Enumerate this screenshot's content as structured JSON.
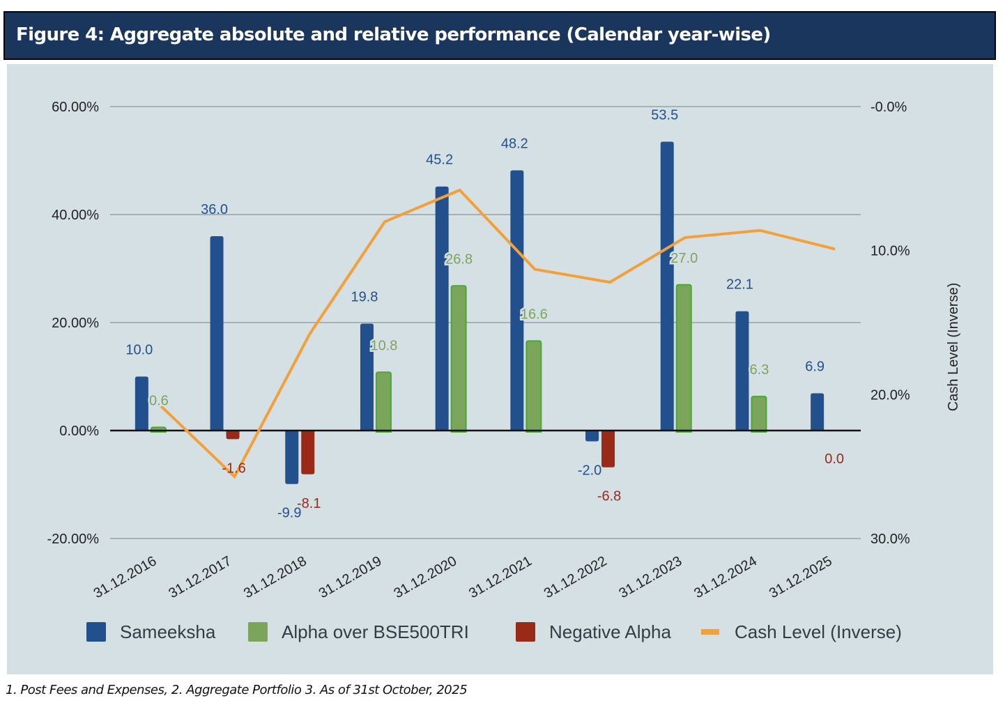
{
  "header": {
    "title": "Figure 4:  Aggregate absolute and relative performance (Calendar year-wise)"
  },
  "footnote": "1. Post Fees and Expenses, 2. Aggregate Portfolio  3. As of 31st October, 2025",
  "colors": {
    "sameeksha": "#22508c",
    "alpha": "#7aa55a",
    "alpha_border": "#4aa83a",
    "negative_alpha": "#9a2a18",
    "cash": "#f4a03a",
    "grid": "#a8b0b0",
    "zero_line": "#111111",
    "background": "#d5e0e5",
    "title_bg": "#1b365d"
  },
  "chart_data": {
    "type": "bar",
    "title": "Aggregate absolute and relative performance (Calendar year-wise)",
    "categories": [
      "31.12.2016",
      "31.12.2017",
      "31.12.2018",
      "31.12.2019",
      "31.12.2020",
      "31.12.2021",
      "31.12.2022",
      "31.12.2023",
      "31.12.2024",
      "31.12.2025"
    ],
    "series": [
      {
        "name": "Sameeksha",
        "kind": "bar",
        "axis": "left",
        "values": [
          10.0,
          36.0,
          -9.9,
          19.8,
          45.2,
          48.2,
          -2.0,
          53.5,
          22.1,
          6.9
        ],
        "labels": [
          "10.0",
          "36.0",
          "-9.9",
          "19.8",
          "45.2",
          "48.2",
          "-2.0",
          "53.5",
          "22.1",
          "6.9"
        ]
      },
      {
        "name": "Alpha over BSE500TRI",
        "kind": "bar",
        "axis": "left",
        "values": [
          0.6,
          null,
          null,
          10.8,
          26.8,
          16.6,
          null,
          27.0,
          6.3,
          null
        ],
        "labels": [
          "0.6",
          null,
          null,
          "10.8",
          "26.8",
          "16.6",
          null,
          "27.0",
          "6.3",
          null
        ]
      },
      {
        "name": "Negative Alpha",
        "kind": "bar",
        "axis": "left",
        "values": [
          null,
          -1.6,
          -8.1,
          null,
          null,
          null,
          -6.8,
          null,
          null,
          0.0
        ],
        "labels": [
          null,
          "-1.6",
          "-8.1",
          null,
          null,
          null,
          "-6.8",
          null,
          null,
          "0.0"
        ]
      },
      {
        "name": "Cash Level (Inverse)",
        "kind": "line",
        "axis": "right",
        "values": [
          20.7,
          25.7,
          15.8,
          8.0,
          5.8,
          11.3,
          12.2,
          9.1,
          8.6,
          9.9
        ]
      }
    ],
    "y_left": {
      "ylim": [
        -20,
        60
      ],
      "ticks": [
        60,
        40,
        20,
        0,
        -20
      ],
      "tick_labels": [
        "60.00%",
        "40.00%",
        "20.00%",
        "0.00%",
        "-20.00%"
      ],
      "label": ""
    },
    "y_right": {
      "ylim": [
        0,
        30
      ],
      "inverted": true,
      "ticks": [
        0,
        10,
        20,
        30
      ],
      "tick_labels": [
        "-0.0%",
        "10.0%",
        "20.0%",
        "30.0%"
      ],
      "label": "Cash Level (Inverse)"
    },
    "xlabel": "",
    "grid": true,
    "legend": {
      "position": "bottom",
      "entries": [
        "Sameeksha",
        "Alpha over BSE500TRI",
        "Negative Alpha",
        "Cash Level (Inverse)"
      ]
    }
  }
}
